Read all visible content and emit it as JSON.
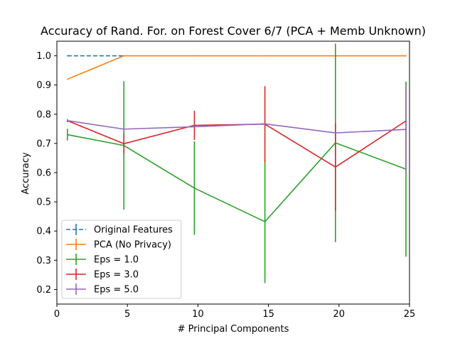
{
  "chart_data": {
    "type": "line",
    "title": "Accuracy of Rand. For. on Forest Cover 6/7 (PCA + Memb Unknown)",
    "xlabel": "# Principal Components",
    "ylabel": "Accuracy",
    "xlim": [
      0,
      25
    ],
    "ylim": [
      0.15,
      1.05
    ],
    "xticks": [
      0,
      5,
      10,
      15,
      20,
      25
    ],
    "yticks": [
      0.2,
      0.3,
      0.4,
      0.5,
      0.6,
      0.7,
      0.8,
      0.9,
      1.0
    ],
    "xtick_labels": [
      "0",
      "5",
      "10",
      "15",
      "20",
      "25"
    ],
    "ytick_labels": [
      "0.2",
      "0.3",
      "0.4",
      "0.5",
      "0.6",
      "0.7",
      "0.8",
      "0.9",
      "1.0"
    ],
    "grid": false,
    "legend_position": "lower-left",
    "series": [
      {
        "name": "Original Features",
        "color": "#1f77b4",
        "dashed": true,
        "x": [
          0.75,
          4.75
        ],
        "y": [
          1.0,
          1.0
        ],
        "err": [
          0,
          0
        ]
      },
      {
        "name": "PCA (No Privacy)",
        "color": "#ff7f0e",
        "dashed": false,
        "x": [
          0.75,
          4.75,
          9.75,
          14.75,
          19.75,
          24.75
        ],
        "y": [
          0.92,
          1.0,
          1.0,
          1.0,
          1.0,
          1.0
        ],
        "err": [
          0,
          0,
          0,
          0,
          0,
          0
        ]
      },
      {
        "name": "Eps = 1.0",
        "color": "#2ca02c",
        "dashed": false,
        "x": [
          0.75,
          4.75,
          9.75,
          14.75,
          19.75,
          24.75
        ],
        "y": [
          0.73,
          0.693,
          0.547,
          0.432,
          0.702,
          0.612
        ],
        "err": [
          0.02,
          0.22,
          0.16,
          0.21,
          0.34,
          0.3
        ]
      },
      {
        "name": "Eps = 3.0",
        "color": "#d62728",
        "dashed": false,
        "x": [
          0.75,
          4.75,
          9.75,
          14.75,
          19.75,
          24.75
        ],
        "y": [
          0.778,
          0.699,
          0.762,
          0.766,
          0.619,
          0.777
        ],
        "err": [
          0.005,
          0.035,
          0.05,
          0.13,
          0.15,
          0.005
        ]
      },
      {
        "name": "Eps = 5.0",
        "color": "#9467bd",
        "dashed": false,
        "x": [
          0.75,
          4.75,
          9.75,
          14.75,
          19.75,
          24.75
        ],
        "y": [
          0.778,
          0.749,
          0.757,
          0.767,
          0.736,
          0.748
        ],
        "err": [
          0.003,
          0.003,
          0.003,
          0.003,
          0.003,
          0.15
        ]
      }
    ]
  }
}
